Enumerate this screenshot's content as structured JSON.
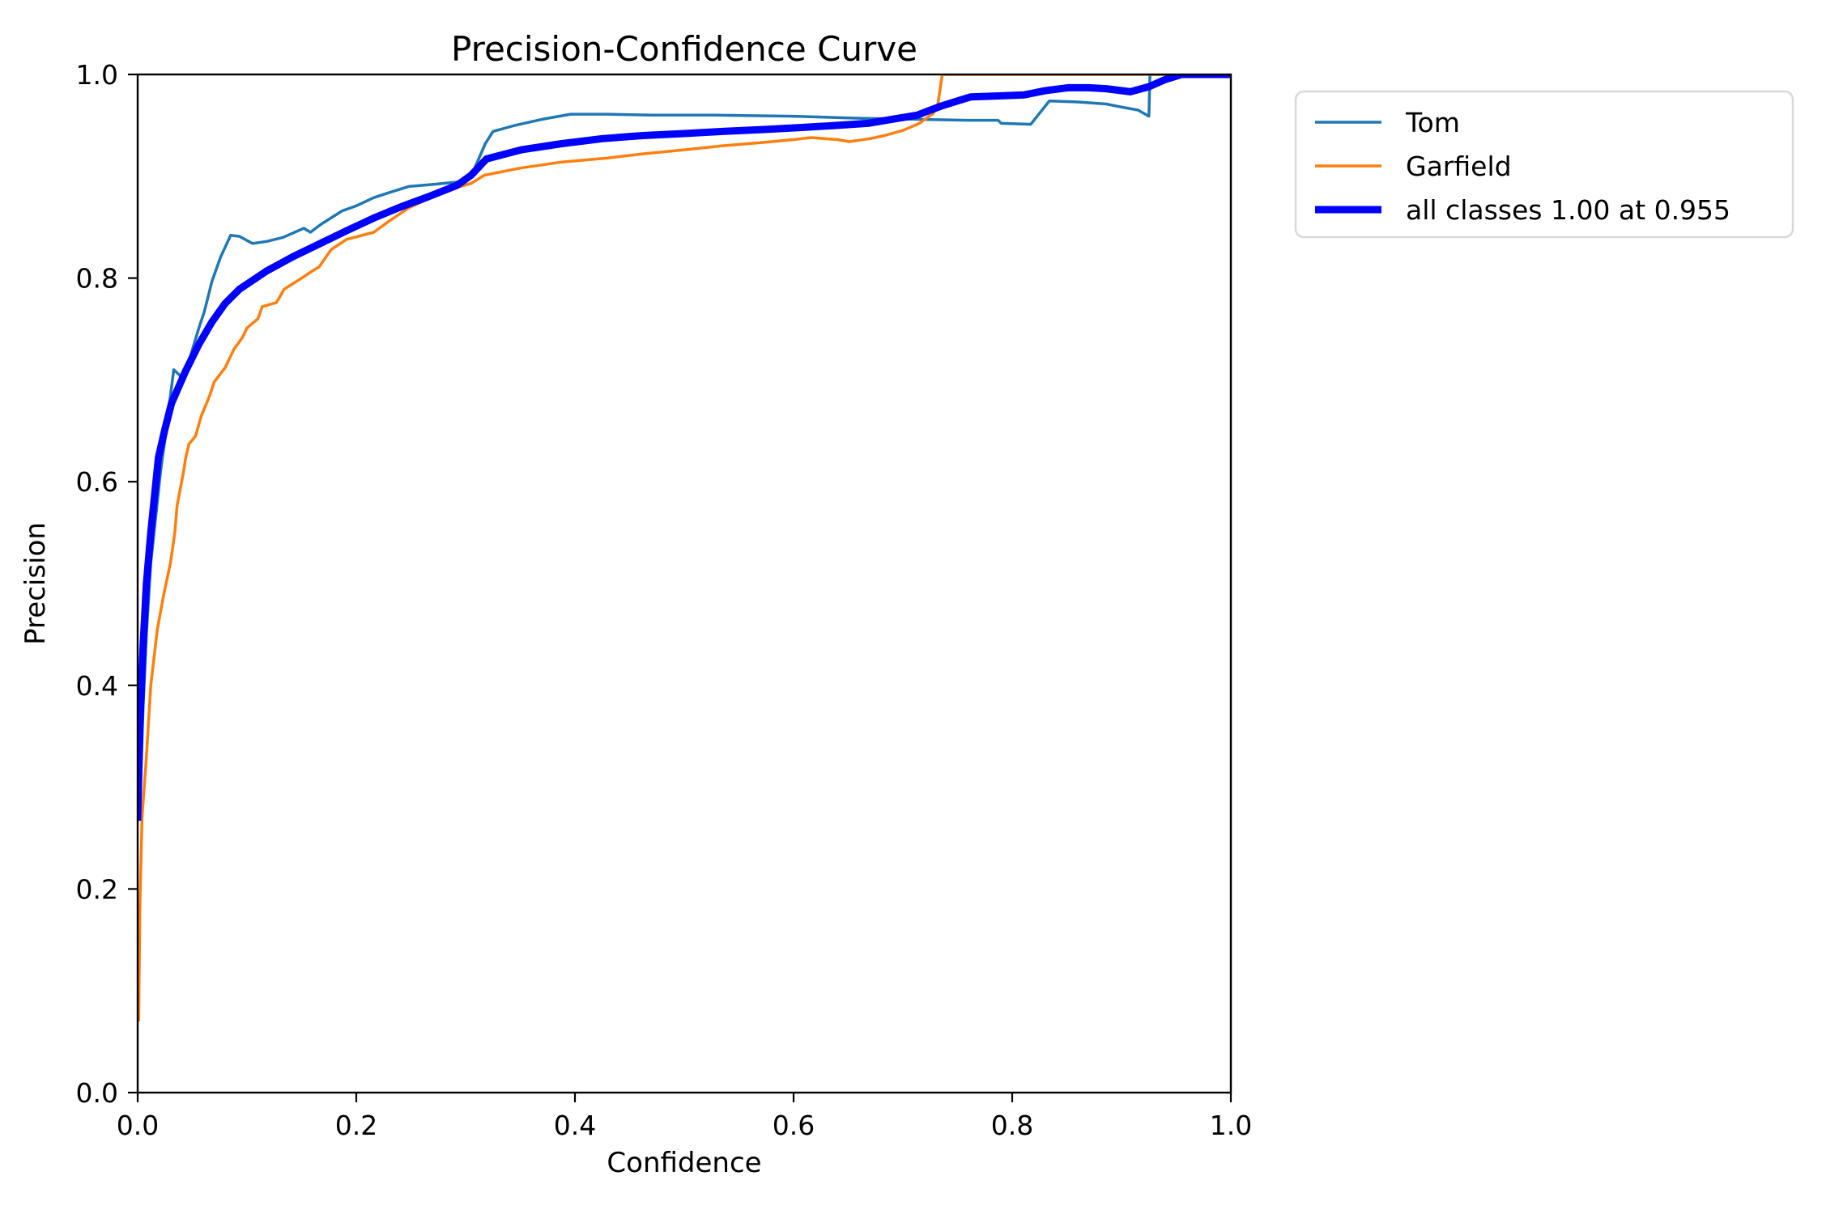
{
  "chart_data": {
    "type": "line",
    "title": "Precision-Confidence Curve",
    "xlabel": "Confidence",
    "ylabel": "Precision",
    "xlim": [
      0.0,
      1.0
    ],
    "ylim": [
      0.0,
      1.0
    ],
    "grid": false,
    "background_color": "#ffffff",
    "spine_color": "#000000",
    "xticks": [
      {
        "value": 0.0,
        "label": "0.0"
      },
      {
        "value": 0.2,
        "label": "0.2"
      },
      {
        "value": 0.4,
        "label": "0.4"
      },
      {
        "value": 0.6,
        "label": "0.6"
      },
      {
        "value": 0.8,
        "label": "0.8"
      },
      {
        "value": 1.0,
        "label": "1.0"
      }
    ],
    "yticks": [
      {
        "value": 0.0,
        "label": "0.0"
      },
      {
        "value": 0.2,
        "label": "0.2"
      },
      {
        "value": 0.4,
        "label": "0.4"
      },
      {
        "value": 0.6,
        "label": "0.6"
      },
      {
        "value": 0.8,
        "label": "0.8"
      },
      {
        "value": 1.0,
        "label": "1.0"
      }
    ],
    "legend": {
      "position": "outside-upper-right",
      "border_color": "#d9d9d9",
      "background": "#ffffff"
    },
    "series": [
      {
        "name": "Tom",
        "color": "#1f77b4",
        "linewidth": 3.5,
        "points": [
          [
            0.002,
            0.28
          ],
          [
            0.005,
            0.38
          ],
          [
            0.008,
            0.45
          ],
          [
            0.012,
            0.52
          ],
          [
            0.016,
            0.56
          ],
          [
            0.021,
            0.61
          ],
          [
            0.026,
            0.65
          ],
          [
            0.03,
            0.685
          ],
          [
            0.033,
            0.71
          ],
          [
            0.038,
            0.705
          ],
          [
            0.041,
            0.702
          ],
          [
            0.046,
            0.715
          ],
          [
            0.051,
            0.733
          ],
          [
            0.056,
            0.751
          ],
          [
            0.061,
            0.767
          ],
          [
            0.068,
            0.797
          ],
          [
            0.076,
            0.821
          ],
          [
            0.085,
            0.842
          ],
          [
            0.093,
            0.841
          ],
          [
            0.105,
            0.834
          ],
          [
            0.118,
            0.836
          ],
          [
            0.133,
            0.84
          ],
          [
            0.152,
            0.849
          ],
          [
            0.158,
            0.845
          ],
          [
            0.168,
            0.853
          ],
          [
            0.187,
            0.866
          ],
          [
            0.2,
            0.871
          ],
          [
            0.216,
            0.879
          ],
          [
            0.233,
            0.885
          ],
          [
            0.248,
            0.89
          ],
          [
            0.27,
            0.892
          ],
          [
            0.298,
            0.895
          ],
          [
            0.305,
            0.9
          ],
          [
            0.318,
            0.932
          ],
          [
            0.325,
            0.944
          ],
          [
            0.345,
            0.95
          ],
          [
            0.37,
            0.956
          ],
          [
            0.396,
            0.961
          ],
          [
            0.43,
            0.961
          ],
          [
            0.47,
            0.96
          ],
          [
            0.53,
            0.96
          ],
          [
            0.6,
            0.959
          ],
          [
            0.66,
            0.957
          ],
          [
            0.713,
            0.956
          ],
          [
            0.76,
            0.955
          ],
          [
            0.787,
            0.955
          ],
          [
            0.79,
            0.952
          ],
          [
            0.817,
            0.951
          ],
          [
            0.825,
            0.962
          ],
          [
            0.834,
            0.974
          ],
          [
            0.86,
            0.973
          ],
          [
            0.886,
            0.971
          ],
          [
            0.9,
            0.968
          ],
          [
            0.915,
            0.965
          ],
          [
            0.925,
            0.959
          ],
          [
            0.926,
            1.0
          ],
          [
            1.0,
            1.0
          ]
        ]
      },
      {
        "name": "Garfield",
        "color": "#ff7f0e",
        "linewidth": 3.5,
        "points": [
          [
            0.001,
            0.07
          ],
          [
            0.002,
            0.18
          ],
          [
            0.004,
            0.27
          ],
          [
            0.008,
            0.33
          ],
          [
            0.012,
            0.4
          ],
          [
            0.018,
            0.455
          ],
          [
            0.024,
            0.49
          ],
          [
            0.03,
            0.52
          ],
          [
            0.034,
            0.55
          ],
          [
            0.036,
            0.576
          ],
          [
            0.042,
            0.61
          ],
          [
            0.044,
            0.624
          ],
          [
            0.047,
            0.637
          ],
          [
            0.053,
            0.645
          ],
          [
            0.058,
            0.664
          ],
          [
            0.066,
            0.685
          ],
          [
            0.07,
            0.698
          ],
          [
            0.08,
            0.712
          ],
          [
            0.088,
            0.73
          ],
          [
            0.096,
            0.742
          ],
          [
            0.1,
            0.751
          ],
          [
            0.11,
            0.76
          ],
          [
            0.114,
            0.772
          ],
          [
            0.127,
            0.776
          ],
          [
            0.134,
            0.789
          ],
          [
            0.15,
            0.8
          ],
          [
            0.157,
            0.805
          ],
          [
            0.166,
            0.811
          ],
          [
            0.177,
            0.828
          ],
          [
            0.191,
            0.838
          ],
          [
            0.216,
            0.845
          ],
          [
            0.23,
            0.856
          ],
          [
            0.248,
            0.869
          ],
          [
            0.27,
            0.88
          ],
          [
            0.295,
            0.89
          ],
          [
            0.305,
            0.893
          ],
          [
            0.317,
            0.901
          ],
          [
            0.35,
            0.908
          ],
          [
            0.388,
            0.914
          ],
          [
            0.43,
            0.918
          ],
          [
            0.462,
            0.922
          ],
          [
            0.5,
            0.926
          ],
          [
            0.535,
            0.93
          ],
          [
            0.57,
            0.933
          ],
          [
            0.6,
            0.936
          ],
          [
            0.616,
            0.938
          ],
          [
            0.64,
            0.936
          ],
          [
            0.651,
            0.934
          ],
          [
            0.67,
            0.937
          ],
          [
            0.683,
            0.94
          ],
          [
            0.7,
            0.945
          ],
          [
            0.715,
            0.952
          ],
          [
            0.728,
            0.962
          ],
          [
            0.732,
            0.971
          ],
          [
            0.736,
            1.0
          ],
          [
            1.0,
            1.0
          ]
        ]
      },
      {
        "name": "all classes 1.00 at 0.955",
        "color": "#0000ff",
        "linewidth": 9,
        "points": [
          [
            0.0,
            0.267
          ],
          [
            0.002,
            0.36
          ],
          [
            0.005,
            0.44
          ],
          [
            0.008,
            0.5
          ],
          [
            0.012,
            0.55
          ],
          [
            0.019,
            0.624
          ],
          [
            0.025,
            0.652
          ],
          [
            0.031,
            0.677
          ],
          [
            0.044,
            0.709
          ],
          [
            0.056,
            0.735
          ],
          [
            0.068,
            0.757
          ],
          [
            0.08,
            0.775
          ],
          [
            0.093,
            0.789
          ],
          [
            0.118,
            0.807
          ],
          [
            0.142,
            0.821
          ],
          [
            0.167,
            0.834
          ],
          [
            0.192,
            0.847
          ],
          [
            0.216,
            0.859
          ],
          [
            0.241,
            0.87
          ],
          [
            0.266,
            0.88
          ],
          [
            0.292,
            0.891
          ],
          [
            0.305,
            0.901
          ],
          [
            0.319,
            0.917
          ],
          [
            0.351,
            0.926
          ],
          [
            0.388,
            0.932
          ],
          [
            0.425,
            0.937
          ],
          [
            0.462,
            0.94
          ],
          [
            0.5,
            0.942
          ],
          [
            0.535,
            0.944
          ],
          [
            0.575,
            0.946
          ],
          [
            0.609,
            0.948
          ],
          [
            0.64,
            0.95
          ],
          [
            0.668,
            0.952
          ],
          [
            0.69,
            0.956
          ],
          [
            0.713,
            0.96
          ],
          [
            0.735,
            0.969
          ],
          [
            0.762,
            0.978
          ],
          [
            0.79,
            0.979
          ],
          [
            0.811,
            0.98
          ],
          [
            0.83,
            0.984
          ],
          [
            0.851,
            0.987
          ],
          [
            0.87,
            0.987
          ],
          [
            0.886,
            0.986
          ],
          [
            0.908,
            0.983
          ],
          [
            0.925,
            0.988
          ],
          [
            0.94,
            0.995
          ],
          [
            0.955,
            1.0
          ],
          [
            1.0,
            1.0
          ]
        ]
      }
    ]
  }
}
